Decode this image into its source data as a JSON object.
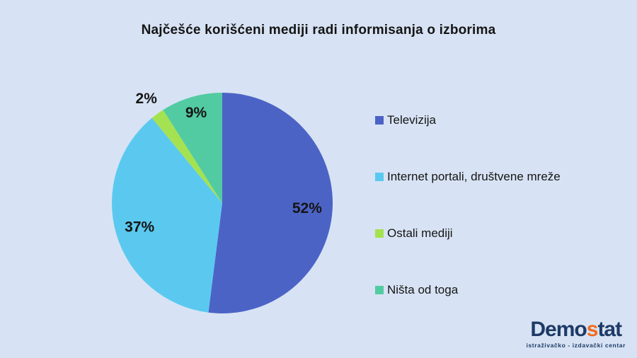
{
  "page": {
    "background": "#D7E3F4"
  },
  "chart_data": {
    "type": "pie",
    "title": "Najčešće korišćeni mediji radi informisanja o izborima",
    "categories": [
      "Televizija",
      "Internet portali, društvene mreže",
      "Ostali mediji",
      "Ništa od toga"
    ],
    "values": [
      52,
      37,
      2,
      9
    ],
    "labels": [
      "52%",
      "37%",
      "2%",
      "9%"
    ],
    "colors": [
      "#4C63C6",
      "#5BC9EF",
      "#A5E251",
      "#52CBA2"
    ],
    "start_angle_deg": 0,
    "direction": "clockwise",
    "legend_position": "right",
    "label_radius_factor": [
      0.77,
      0.78,
      1.17,
      0.85
    ],
    "label_color": "#151515"
  },
  "logo": {
    "brand_prefix": "Demo",
    "brand_accent": "s",
    "brand_suffix": "tat",
    "subtitle": "istraživačko - izdavački centar",
    "navy_color": "#1E3A66",
    "accent_color": "#F26A1E"
  }
}
